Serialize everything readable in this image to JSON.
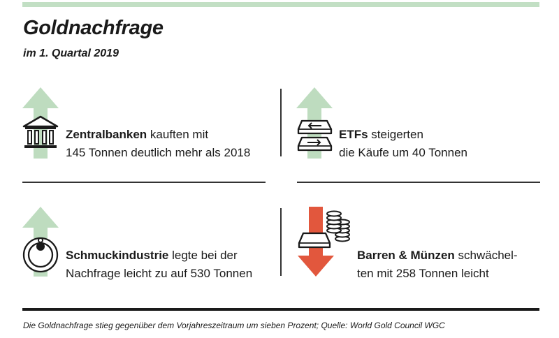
{
  "header": {
    "title": "Goldnachfrage",
    "subtitle": "im 1. Quartal 2019"
  },
  "colors": {
    "accent_green": "#c2dfc4",
    "arrow_up_green": "#bedcbf",
    "arrow_down_red": "#e2573d",
    "rule_dark": "#1a1a1a"
  },
  "items": [
    {
      "icon": "bank-building-icon",
      "trend": "up",
      "bold": "Zentralbanken",
      "rest_line1": " kauften mit",
      "line2": "145 Tonnen deutlich mehr als 2018"
    },
    {
      "icon": "etf-exchange-icon",
      "trend": "up",
      "bold": "ETFs",
      "rest_line1": " steigerten",
      "line2": "die Käufe um 40 Tonnen"
    },
    {
      "icon": "jewelry-necklace-icon",
      "trend": "up",
      "bold": "Schmuckindustrie",
      "rest_line1": " legte bei der",
      "line2": "Nachfrage leicht zu auf 530 Tonnen"
    },
    {
      "icon": "gold-bars-coins-icon",
      "trend": "down",
      "bold": "Barren & Münzen",
      "rest_line1": " schwächel-",
      "line2": "ten mit 258 Tonnen leicht"
    }
  ],
  "footnote": "Die Goldnachfrage stieg gegenüber dem Vorjahreszeitraum um sieben Prozent; Quelle: World Gold Council WGC"
}
